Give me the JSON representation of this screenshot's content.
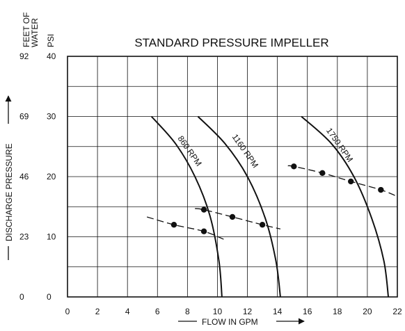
{
  "chart_data": {
    "type": "line",
    "title": "STANDARD PRESSURE IMPELLER",
    "xlabel": "FLOW IN GPM",
    "ylabel": "DISCHARGE PRESSURE",
    "y_axis_headers": {
      "feet": "FEET OF WATER",
      "psi": "PSI"
    },
    "xlim": [
      0,
      22
    ],
    "ylim": [
      0,
      40
    ],
    "x_ticks": [
      "0",
      "2",
      "4",
      "6",
      "8",
      "10",
      "12",
      "14",
      "16",
      "18",
      "20",
      "22"
    ],
    "y_ticks_psi": [
      "0",
      "10",
      "20",
      "30",
      "40"
    ],
    "y_ticks_feet": [
      "0",
      "23",
      "46",
      "69",
      "92"
    ],
    "grid": true,
    "pump_curves": [
      {
        "name": "860 RPM",
        "label_at": [
          8.0,
          24.0
        ],
        "points": [
          [
            5.6,
            30
          ],
          [
            7.2,
            25.5
          ],
          [
            8.5,
            20
          ],
          [
            9.5,
            13.5
          ],
          [
            10.1,
            6
          ],
          [
            10.3,
            0
          ]
        ]
      },
      {
        "name": "1160 RPM",
        "label_at": [
          11.7,
          24.0
        ],
        "points": [
          [
            8.7,
            30
          ],
          [
            10.5,
            25.5
          ],
          [
            12.0,
            20
          ],
          [
            13.2,
            13
          ],
          [
            13.9,
            6
          ],
          [
            14.2,
            0
          ]
        ]
      },
      {
        "name": "1750 RPM",
        "label_at": [
          18.0,
          25.0
        ],
        "points": [
          [
            15.6,
            30
          ],
          [
            17.6,
            25.5
          ],
          [
            19.1,
            20
          ],
          [
            20.3,
            13
          ],
          [
            21.1,
            6
          ],
          [
            21.4,
            0
          ]
        ]
      }
    ],
    "system_curves": [
      {
        "name": "",
        "x": [
          5.3,
          7.1,
          9.1,
          10.5
        ],
        "y": [
          13.3,
          12.0,
          10.9,
          9.5
        ],
        "markers": [
          [
            7.1,
            12.0
          ],
          [
            9.1,
            10.9
          ]
        ]
      },
      {
        "name": "",
        "x": [
          8.5,
          9.1,
          11.0,
          13.0,
          14.2
        ],
        "y": [
          14.7,
          14.5,
          13.3,
          12.0,
          11.3
        ],
        "markers": [
          [
            9.1,
            14.5
          ],
          [
            11.0,
            13.3
          ],
          [
            13.0,
            12.0
          ]
        ]
      },
      {
        "name": "",
        "x": [
          14.7,
          15.1,
          17.0,
          18.9,
          20.9,
          22.0
        ],
        "y": [
          21.8,
          21.7,
          20.6,
          19.2,
          17.8,
          16.7
        ],
        "markers": [
          [
            15.1,
            21.7
          ],
          [
            17.0,
            20.6
          ],
          [
            18.9,
            19.2
          ],
          [
            20.9,
            17.8
          ]
        ]
      }
    ]
  }
}
